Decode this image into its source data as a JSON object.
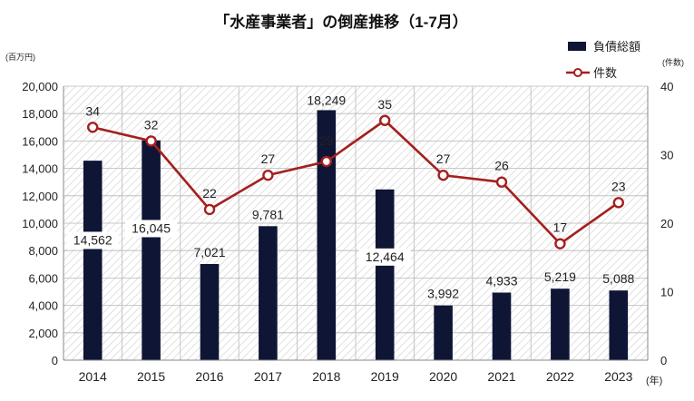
{
  "chart_data": {
    "type": "bar",
    "title": "「水産事業者」の倒産推移（1-7月）",
    "categories": [
      "2014",
      "2015",
      "2016",
      "2017",
      "2018",
      "2019",
      "2020",
      "2021",
      "2022",
      "2023"
    ],
    "x_unit": "(年)",
    "y_left_unit": "(百万円)",
    "y_right_unit": "(件数)",
    "ylim_left": [
      0,
      20000
    ],
    "ylim_right": [
      0,
      40
    ],
    "y_left_ticks": [
      "0",
      "2,000",
      "4,000",
      "6,000",
      "8,000",
      "10,000",
      "12,000",
      "14,000",
      "16,000",
      "18,000",
      "20,000"
    ],
    "y_right_ticks": [
      "0",
      "10",
      "20",
      "30",
      "40"
    ],
    "legend_position": "top-right",
    "series": [
      {
        "name": "負債総額",
        "type": "bar",
        "axis": "left",
        "color": "#0f1535",
        "values": [
          14562,
          16045,
          7021,
          9781,
          18249,
          12464,
          3992,
          4933,
          5219,
          5088
        ],
        "labels": [
          "14,562",
          "16,045",
          "7,021",
          "9,781",
          "18,249",
          "12,464",
          "3,992",
          "4,933",
          "5,219",
          "5,088"
        ]
      },
      {
        "name": "件数",
        "type": "line",
        "axis": "right",
        "color": "#a3201e",
        "values": [
          34,
          32,
          22,
          27,
          29,
          35,
          27,
          26,
          17,
          23
        ],
        "labels": [
          "34",
          "32",
          "22",
          "27",
          "29",
          "35",
          "27",
          "26",
          "17",
          "23"
        ]
      }
    ],
    "grid": true
  }
}
